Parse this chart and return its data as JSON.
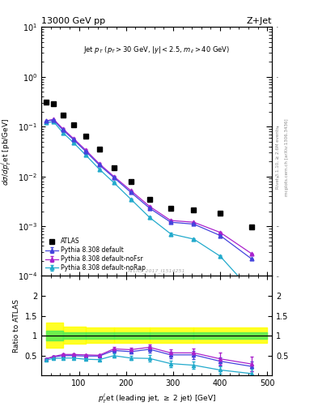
{
  "title": "13000 GeV pp",
  "title_right": "Z+Jet",
  "watermark": "ATLAS_2017_I1514251",
  "right_label1": "Rivet 3.1.10, ≥ 2.6M events",
  "right_label2": "mcplots.cern.ch [arXiv:1306.3436]",
  "xlabel": "$p_T^{j}$et (leading jet, $\\geq$ 2 jet) [GeV]",
  "ylabel_main": "dσ/dp$_T^j$et [pb/GeV]",
  "ylabel_ratio": "Ratio to ATLAS",
  "atlas_x": [
    30,
    46,
    66,
    88,
    114,
    143,
    174,
    210,
    250,
    295,
    344,
    400,
    467
  ],
  "atlas_y": [
    0.31,
    0.29,
    0.17,
    0.11,
    0.065,
    0.035,
    0.015,
    0.008,
    0.0035,
    0.0023,
    0.0021,
    0.0018,
    0.00095
  ],
  "py_default_x": [
    30,
    46,
    66,
    88,
    114,
    143,
    174,
    210,
    250,
    295,
    344,
    400,
    467
  ],
  "py_default_y": [
    0.13,
    0.135,
    0.085,
    0.055,
    0.032,
    0.017,
    0.0095,
    0.0048,
    0.0023,
    0.0012,
    0.0011,
    0.00065,
    0.00022
  ],
  "py_noFsr_x": [
    30,
    46,
    66,
    88,
    114,
    143,
    174,
    210,
    250,
    295,
    344,
    400,
    467
  ],
  "py_noFsr_y": [
    0.13,
    0.14,
    0.09,
    0.058,
    0.034,
    0.018,
    0.01,
    0.0052,
    0.0025,
    0.0013,
    0.0012,
    0.00075,
    0.00028
  ],
  "py_noRap_x": [
    30,
    46,
    66,
    88,
    114,
    143,
    174,
    210,
    250,
    295,
    344,
    400,
    467
  ],
  "py_noRap_y": [
    0.12,
    0.125,
    0.075,
    0.048,
    0.027,
    0.014,
    0.0075,
    0.0035,
    0.0015,
    0.0007,
    0.00055,
    0.00025,
    5e-05
  ],
  "py_default_yerr": [
    0.003,
    0.003,
    0.002,
    0.001,
    0.001,
    0.0005,
    0.0003,
    0.0001,
    5e-05,
    3e-05,
    2e-05,
    1e-05,
    5e-06
  ],
  "py_noFsr_yerr": [
    0.003,
    0.003,
    0.002,
    0.001,
    0.001,
    0.0005,
    0.0003,
    0.0001,
    5e-05,
    3e-05,
    2e-05,
    1e-05,
    5e-06
  ],
  "py_noRap_yerr": [
    0.003,
    0.003,
    0.002,
    0.001,
    0.001,
    0.0005,
    0.0003,
    0.0001,
    5e-05,
    3e-05,
    2e-05,
    1e-05,
    5e-06
  ],
  "ratio_default_y": [
    0.42,
    0.47,
    0.5,
    0.5,
    0.49,
    0.49,
    0.63,
    0.6,
    0.66,
    0.52,
    0.52,
    0.36,
    0.23
  ],
  "ratio_noFsr_y": [
    0.42,
    0.48,
    0.53,
    0.53,
    0.52,
    0.51,
    0.67,
    0.65,
    0.71,
    0.57,
    0.57,
    0.42,
    0.29
  ],
  "ratio_noRap_y": [
    0.39,
    0.43,
    0.44,
    0.44,
    0.41,
    0.4,
    0.5,
    0.44,
    0.43,
    0.3,
    0.26,
    0.14,
    0.05
  ],
  "ratio_default_yerr": [
    0.02,
    0.02,
    0.02,
    0.02,
    0.02,
    0.02,
    0.05,
    0.05,
    0.08,
    0.08,
    0.1,
    0.1,
    0.12
  ],
  "ratio_noFsr_yerr": [
    0.02,
    0.02,
    0.02,
    0.02,
    0.02,
    0.02,
    0.05,
    0.05,
    0.08,
    0.08,
    0.1,
    0.15,
    0.18
  ],
  "ratio_noRap_yerr": [
    0.02,
    0.02,
    0.02,
    0.02,
    0.02,
    0.02,
    0.05,
    0.05,
    0.08,
    0.08,
    0.1,
    0.1,
    0.12
  ],
  "band_x_edges": [
    30,
    66,
    114,
    174,
    250,
    344,
    500
  ],
  "band_green_lo": [
    0.88,
    0.93,
    0.93,
    0.93,
    0.93,
    0.93
  ],
  "band_green_hi": [
    1.13,
    1.08,
    1.08,
    1.08,
    1.08,
    1.08
  ],
  "band_yellow_lo": [
    0.7,
    0.8,
    0.82,
    0.82,
    0.82,
    0.82
  ],
  "band_yellow_hi": [
    1.33,
    1.22,
    1.2,
    1.2,
    1.2,
    1.2
  ],
  "color_atlas": "#000000",
  "color_default": "#4444dd",
  "color_noFsr": "#aa22cc",
  "color_noRap": "#22aacc",
  "xlim": [
    20,
    510
  ],
  "ylim_main": [
    0.0001,
    10
  ],
  "ylim_ratio": [
    0.0,
    2.5
  ]
}
